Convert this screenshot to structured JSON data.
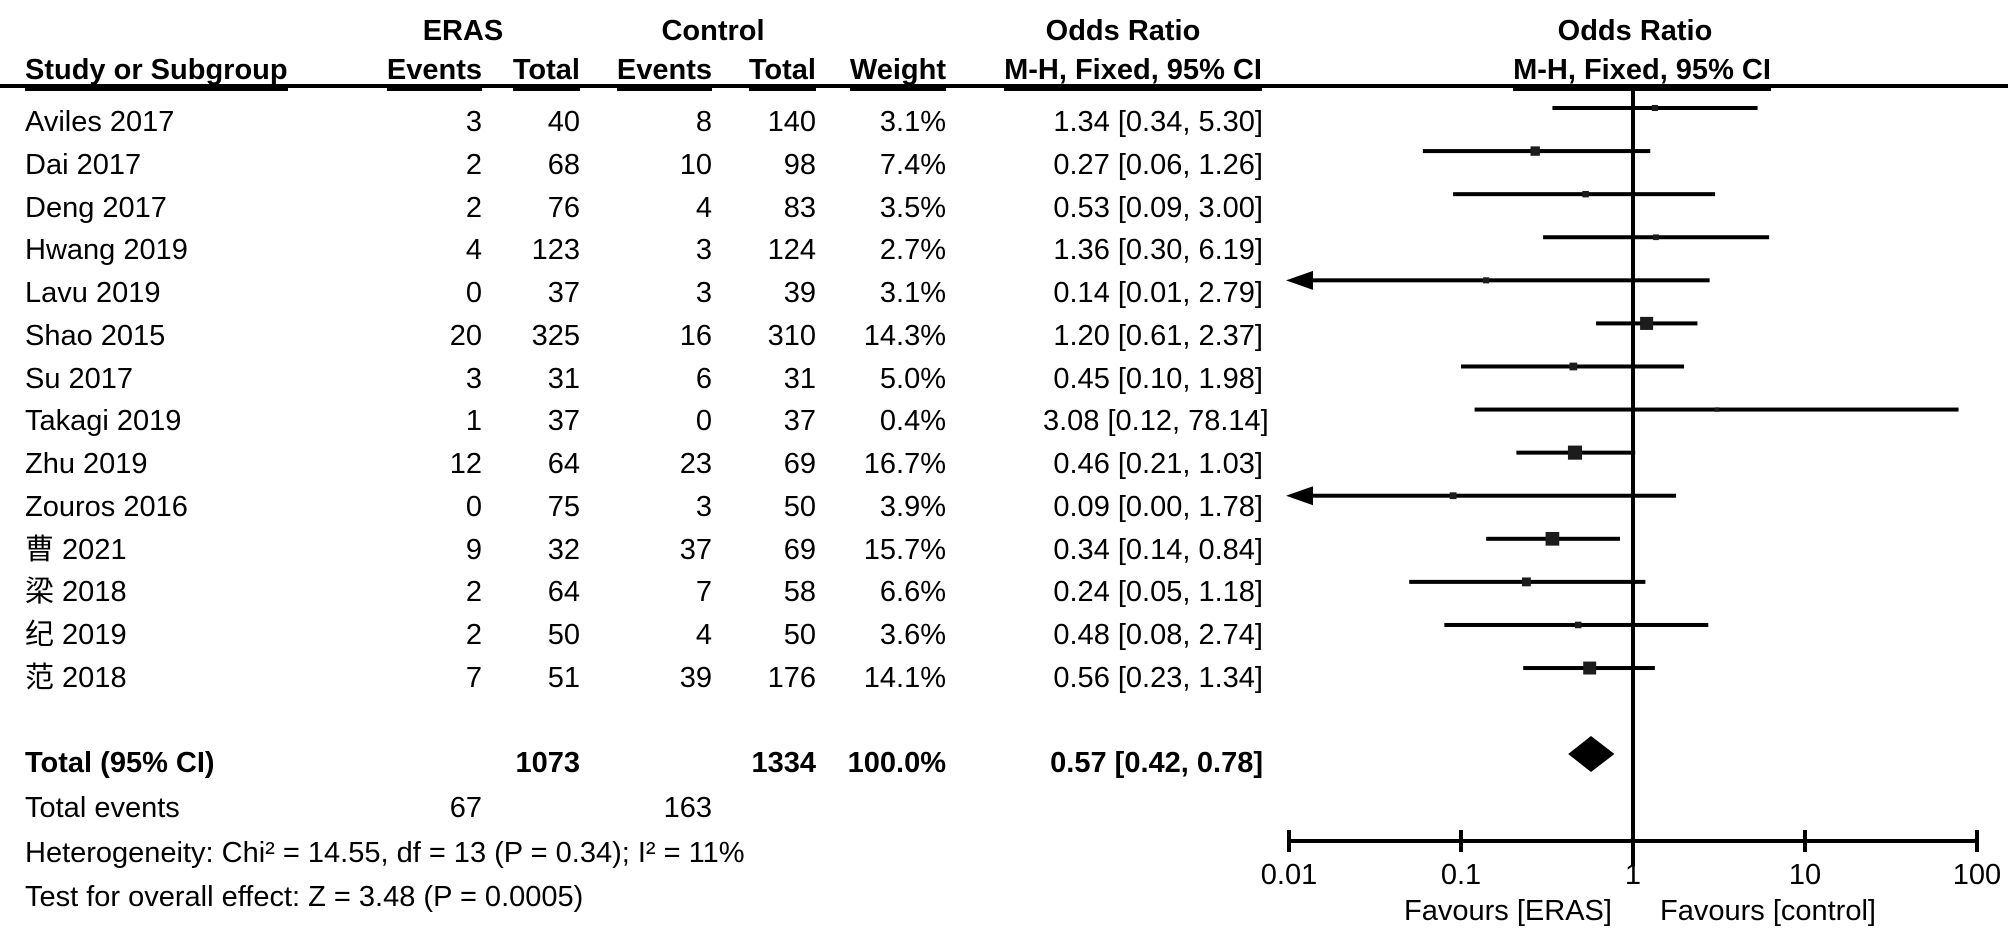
{
  "chart_data": {
    "type": "forest_plot",
    "title": "",
    "effect_header": "Odds Ratio",
    "method_header": "M-H, Fixed, 95% CI",
    "groups": [
      "ERAS",
      "Control"
    ],
    "columns": [
      "Study or Subgroup",
      "Events",
      "Total",
      "Events",
      "Total",
      "Weight"
    ],
    "scale": "log",
    "xlim": [
      0.01,
      100
    ],
    "studies": [
      {
        "name": "Aviles 2017",
        "eras_events": "3",
        "eras_total": "40",
        "control_events": "8",
        "control_total": "140",
        "weight": "3.1%",
        "weight_value": 3.1,
        "or": 1.34,
        "ci_low": 0.34,
        "ci_high": 5.3,
        "label": "1.34 [0.34, 5.30]",
        "arrow_left": false
      },
      {
        "name": "Dai 2017",
        "eras_events": "2",
        "eras_total": "68",
        "control_events": "10",
        "control_total": "98",
        "weight": "7.4%",
        "weight_value": 7.4,
        "or": 0.27,
        "ci_low": 0.06,
        "ci_high": 1.26,
        "label": "0.27 [0.06, 1.26]",
        "arrow_left": false
      },
      {
        "name": "Deng 2017",
        "eras_events": "2",
        "eras_total": "76",
        "control_events": "4",
        "control_total": "83",
        "weight": "3.5%",
        "weight_value": 3.5,
        "or": 0.53,
        "ci_low": 0.09,
        "ci_high": 3.0,
        "label": "0.53 [0.09, 3.00]",
        "arrow_left": false
      },
      {
        "name": "Hwang 2019",
        "eras_events": "4",
        "eras_total": "123",
        "control_events": "3",
        "control_total": "124",
        "weight": "2.7%",
        "weight_value": 2.7,
        "or": 1.36,
        "ci_low": 0.3,
        "ci_high": 6.19,
        "label": "1.36 [0.30, 6.19]",
        "arrow_left": false
      },
      {
        "name": "Lavu 2019",
        "eras_events": "0",
        "eras_total": "37",
        "control_events": "3",
        "control_total": "39",
        "weight": "3.1%",
        "weight_value": 3.1,
        "or": 0.14,
        "ci_low": 0.01,
        "ci_high": 2.79,
        "label": "0.14 [0.01, 2.79]",
        "arrow_left": true
      },
      {
        "name": "Shao 2015",
        "eras_events": "20",
        "eras_total": "325",
        "control_events": "16",
        "control_total": "310",
        "weight": "14.3%",
        "weight_value": 14.3,
        "or": 1.2,
        "ci_low": 0.61,
        "ci_high": 2.37,
        "label": "1.20 [0.61, 2.37]",
        "arrow_left": false
      },
      {
        "name": "Su 2017",
        "eras_events": "3",
        "eras_total": "31",
        "control_events": "6",
        "control_total": "31",
        "weight": "5.0%",
        "weight_value": 5.0,
        "or": 0.45,
        "ci_low": 0.1,
        "ci_high": 1.98,
        "label": "0.45 [0.10, 1.98]",
        "arrow_left": false
      },
      {
        "name": "Takagi 2019",
        "eras_events": "1",
        "eras_total": "37",
        "control_events": "0",
        "control_total": "37",
        "weight": "0.4%",
        "weight_value": 0.4,
        "or": 3.08,
        "ci_low": 0.12,
        "ci_high": 78.14,
        "label": "3.08 [0.12, 78.14]",
        "arrow_left": false
      },
      {
        "name": "Zhu 2019",
        "eras_events": "12",
        "eras_total": "64",
        "control_events": "23",
        "control_total": "69",
        "weight": "16.7%",
        "weight_value": 16.7,
        "or": 0.46,
        "ci_low": 0.21,
        "ci_high": 1.03,
        "label": "0.46 [0.21, 1.03]",
        "arrow_left": false
      },
      {
        "name": "Zouros 2016",
        "eras_events": "0",
        "eras_total": "75",
        "control_events": "3",
        "control_total": "50",
        "weight": "3.9%",
        "weight_value": 3.9,
        "or": 0.09,
        "ci_low": 0.004,
        "ci_high": 1.78,
        "label": "0.09 [0.00, 1.78]",
        "arrow_left": true
      },
      {
        "name": "曹 2021",
        "eras_events": "9",
        "eras_total": "32",
        "control_events": "37",
        "control_total": "69",
        "weight": "15.7%",
        "weight_value": 15.7,
        "or": 0.34,
        "ci_low": 0.14,
        "ci_high": 0.84,
        "label": "0.34 [0.14, 0.84]",
        "arrow_left": false
      },
      {
        "name": "梁 2018",
        "eras_events": "2",
        "eras_total": "64",
        "control_events": "7",
        "control_total": "58",
        "weight": "6.6%",
        "weight_value": 6.6,
        "or": 0.24,
        "ci_low": 0.05,
        "ci_high": 1.18,
        "label": "0.24 [0.05, 1.18]",
        "arrow_left": false
      },
      {
        "name": "纪 2019",
        "eras_events": "2",
        "eras_total": "50",
        "control_events": "4",
        "control_total": "50",
        "weight": "3.6%",
        "weight_value": 3.6,
        "or": 0.48,
        "ci_low": 0.08,
        "ci_high": 2.74,
        "label": "0.48 [0.08, 2.74]",
        "arrow_left": false
      },
      {
        "name": "范 2018",
        "eras_events": "7",
        "eras_total": "51",
        "control_events": "39",
        "control_total": "176",
        "weight": "14.1%",
        "weight_value": 14.1,
        "or": 0.56,
        "ci_low": 0.23,
        "ci_high": 1.34,
        "label": "0.56 [0.23, 1.34]",
        "arrow_left": false
      }
    ],
    "total": {
      "label": "Total (95% CI)",
      "eras_total": "1073",
      "control_total": "1334",
      "weight": "100.0%",
      "or": 0.57,
      "ci_low": 0.42,
      "ci_high": 0.78,
      "or_label": "0.57 [0.42, 0.78]"
    },
    "total_events": {
      "label": "Total events",
      "eras": "67",
      "control": "163"
    },
    "heterogeneity": "Heterogeneity: Chi² = 14.55, df = 13 (P = 0.34); I² = 11%",
    "overall_effect": "Test for overall effect: Z = 3.48 (P = 0.0005)",
    "x_axis": {
      "ticks": [
        0.01,
        0.1,
        1,
        10,
        100
      ],
      "tick_labels": [
        "0.01",
        "0.1",
        "1",
        "10",
        "100"
      ],
      "left_label": "Favours [ERAS]",
      "right_label": "Favours [control]"
    },
    "colors": {
      "line": "#000000",
      "marker": "#1c1c1c",
      "text": "#000000",
      "background": "#ffffff"
    }
  }
}
